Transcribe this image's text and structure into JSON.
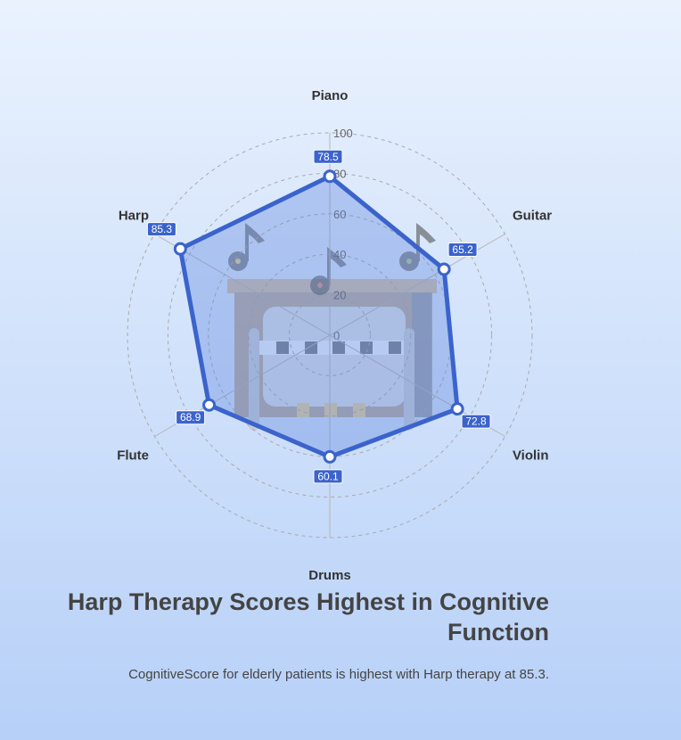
{
  "chart_data": {
    "type": "radar",
    "categories": [
      "Piano",
      "Guitar",
      "Violin",
      "Drums",
      "Flute",
      "Harp"
    ],
    "series": [
      {
        "values": [
          78.5,
          65.2,
          72.8,
          60.1,
          68.9,
          85.3
        ]
      }
    ],
    "rlim": [
      0,
      100
    ],
    "ticks": [
      0,
      20,
      40,
      60,
      80,
      100
    ],
    "grid": true,
    "colors": {
      "line": "#3b63cc",
      "fill": "rgba(90,130,220,0.35)",
      "label_bg": "#3b63cc",
      "grid": "#aaaaaa"
    }
  },
  "title": "Harp Therapy Scores Highest in Cognitive Function",
  "subtitle": "CognitiveScore for elderly patients is highest with Harp therapy at 85.3.",
  "background_illustration": [
    "piano-illustration",
    "music-note-icon"
  ]
}
